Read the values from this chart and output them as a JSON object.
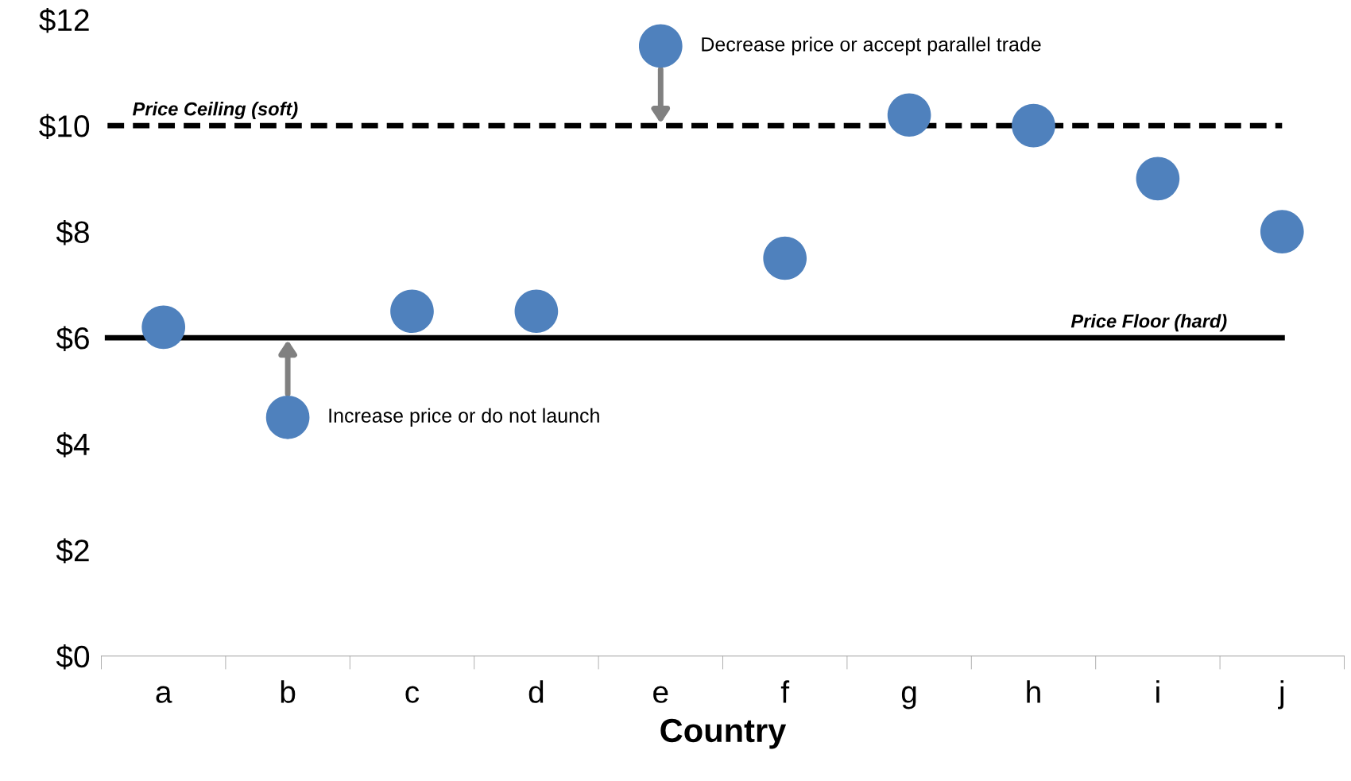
{
  "chart_data": {
    "type": "scatter",
    "xlabel": "Country",
    "categories": [
      "a",
      "b",
      "c",
      "d",
      "e",
      "f",
      "g",
      "h",
      "i",
      "j"
    ],
    "values": [
      6.2,
      4.5,
      6.5,
      6.5,
      11.5,
      7.5,
      10.2,
      10.0,
      9.0,
      8.0
    ],
    "color": "#4f81bd",
    "marker": "circle",
    "ylim": [
      0,
      12
    ],
    "yticks": [
      {
        "value": 0,
        "label": "$0"
      },
      {
        "value": 2,
        "label": "$2"
      },
      {
        "value": 4,
        "label": "$4"
      },
      {
        "value": 6,
        "label": "$6"
      },
      {
        "value": 8,
        "label": "$8"
      },
      {
        "value": 10,
        "label": "$10"
      },
      {
        "value": 12,
        "label": "$12"
      }
    ],
    "ref_lines": [
      {
        "axis": "y",
        "value": 10,
        "label": "Price Ceiling (soft)",
        "color": "#000000",
        "line_style": "dashed"
      },
      {
        "axis": "y",
        "value": 6,
        "label": "Price Floor (hard)",
        "color": "#000000",
        "line_style": "solid"
      }
    ],
    "annotations": [
      {
        "text": "Decrease price or accept parallel trade",
        "x": "e",
        "y": 11.5
      },
      {
        "text": "Increase price or do not launch",
        "x": "b",
        "y": 4.5
      }
    ],
    "grid": false,
    "legend": false
  }
}
